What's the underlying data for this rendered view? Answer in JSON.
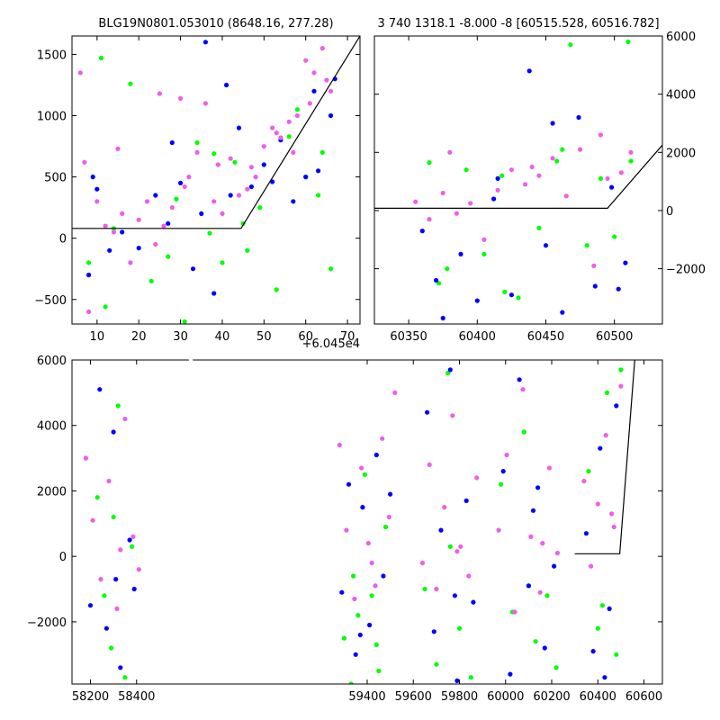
{
  "chart_data": [
    {
      "type": "scatter",
      "title": "BLG19N0801.053010 (8648.16, 277.28)",
      "xlabel": "",
      "ylabel": "",
      "xlim": [
        4,
        73
      ],
      "ylim": [
        -700,
        1650
      ],
      "x_offset_label": "+6.045e4",
      "xticks": [
        10,
        20,
        30,
        40,
        50,
        60,
        70
      ],
      "yticks": [
        -500,
        0,
        500,
        1000,
        1500
      ],
      "ytick_side": "left",
      "colors": {
        "green": "#00ff00",
        "blue": "#0000ff",
        "pink": "#ee5fe6"
      },
      "model_line": {
        "x": [
          4,
          44.5,
          73
        ],
        "y": [
          80,
          80,
          1650
        ]
      },
      "series": [
        {
          "color": "#00ff00",
          "x": [
            8,
            11,
            14,
            18,
            23,
            27,
            31,
            34,
            37,
            40,
            43,
            46,
            49,
            53,
            56,
            60,
            63,
            66,
            12,
            29,
            38,
            45,
            58,
            64
          ],
          "y": [
            -200,
            1470,
            80,
            1260,
            -350,
            -150,
            -680,
            780,
            40,
            -200,
            620,
            -100,
            250,
            -420,
            830,
            500,
            350,
            -250,
            -560,
            320,
            690,
            120,
            1050,
            700
          ]
        },
        {
          "color": "#0000ff",
          "x": [
            8,
            10,
            13,
            16,
            20,
            24,
            27,
            30,
            33,
            36,
            38,
            41,
            44,
            47,
            50,
            54,
            57,
            60,
            63,
            66,
            9,
            28,
            35,
            42,
            52,
            62,
            67
          ],
          "y": [
            -300,
            400,
            -100,
            50,
            -80,
            350,
            120,
            450,
            -250,
            1600,
            -450,
            1250,
            900,
            420,
            600,
            800,
            300,
            500,
            550,
            1000,
            500,
            780,
            200,
            350,
            460,
            1200,
            1300
          ]
        },
        {
          "color": "#ee5fe6",
          "x": [
            6,
            8,
            10,
            12,
            14,
            16,
            18,
            20,
            22,
            24,
            26,
            28,
            30,
            32,
            34,
            36,
            38,
            40,
            42,
            44,
            46,
            48,
            50,
            52,
            54,
            56,
            58,
            60,
            62,
            64,
            66,
            7,
            15,
            25,
            31,
            39,
            47,
            53,
            57,
            61,
            65
          ],
          "y": [
            1350,
            -600,
            300,
            100,
            50,
            200,
            -200,
            150,
            300,
            -50,
            100,
            250,
            1140,
            500,
            700,
            1100,
            300,
            200,
            650,
            350,
            400,
            500,
            750,
            900,
            820,
            950,
            1000,
            1450,
            1350,
            1550,
            1200,
            620,
            730,
            1180,
            420,
            600,
            580,
            860,
            700,
            1100,
            1290
          ]
        }
      ]
    },
    {
      "type": "scatter",
      "title": "3 740 1318.1 -8.000 -8 [60515.528, 60516.782]",
      "xlabel": "",
      "ylabel": "",
      "xlim": [
        60325,
        60535
      ],
      "ylim": [
        -3900,
        6000
      ],
      "xticks": [
        60350,
        60400,
        60450,
        60500
      ],
      "yticks": [
        -2000,
        0,
        2000,
        4000,
        6000
      ],
      "ytick_side": "right",
      "model_line": {
        "x": [
          60325,
          60495,
          60535
        ],
        "y": [
          80,
          80,
          2250
        ]
      },
      "series": [
        {
          "color": "#00ff00",
          "x": [
            60365,
            60378,
            60392,
            60405,
            60418,
            60430,
            60445,
            60458,
            60468,
            60480,
            60490,
            60500,
            60510,
            60372,
            60420,
            60462,
            60512
          ],
          "y": [
            1650,
            -2000,
            1400,
            -1500,
            1200,
            -3000,
            -600,
            1700,
            5700,
            -1200,
            1100,
            -900,
            5800,
            -2500,
            -2800,
            2100,
            1700
          ]
        },
        {
          "color": "#0000ff",
          "x": [
            60360,
            60375,
            60388,
            60400,
            60412,
            60425,
            60438,
            60450,
            60462,
            60474,
            60486,
            60498,
            60508,
            60370,
            60415,
            60455,
            60503
          ],
          "y": [
            -700,
            -3700,
            -1500,
            -3100,
            400,
            -2900,
            4800,
            -1200,
            -3500,
            3200,
            -2600,
            800,
            -1800,
            -2400,
            1100,
            3000,
            -2700
          ]
        },
        {
          "color": "#ee5fe6",
          "x": [
            60355,
            60365,
            60375,
            60385,
            60395,
            60405,
            60415,
            60425,
            60435,
            60445,
            60455,
            60465,
            60475,
            60485,
            60495,
            60505,
            60512,
            60380,
            60440,
            60490
          ],
          "y": [
            300,
            -300,
            600,
            -100,
            250,
            -1000,
            700,
            1400,
            900,
            1200,
            1800,
            500,
            2100,
            -1900,
            1100,
            1300,
            2000,
            2000,
            1500,
            2600
          ]
        }
      ]
    },
    {
      "type": "scatter",
      "title": "",
      "xlabel": "",
      "ylabel": "",
      "xlim": [
        58120,
        60680
      ],
      "ylim": [
        -3900,
        6000
      ],
      "xticks": [
        58200,
        58400,
        59400,
        59600,
        59800,
        60000,
        60200,
        60400,
        60600
      ],
      "yticks": [
        -2000,
        0,
        2000,
        4000,
        6000
      ],
      "ytick_side": "left",
      "model_line": {
        "x": [
          60300,
          60495,
          60560
        ],
        "y": [
          80,
          80,
          6000
        ]
      },
      "series": [
        {
          "color": "#00ff00",
          "x": [
            58230,
            58260,
            58290,
            58320,
            58350,
            58380,
            59300,
            59330,
            59360,
            59390,
            59420,
            59450,
            59480,
            59650,
            59700,
            59750,
            59800,
            59850,
            59980,
            60030,
            60080,
            60130,
            60180,
            60220,
            60360,
            60400,
            60440,
            60480,
            58300,
            59340,
            59440,
            59760,
            60100,
            60420,
            60500
          ],
          "y": [
            1800,
            -1200,
            -2800,
            4600,
            -3700,
            300,
            -2500,
            -3900,
            -1800,
            2500,
            -1200,
            -3500,
            900,
            -1000,
            -3300,
            5600,
            -2200,
            -3700,
            2200,
            -1700,
            3800,
            -2600,
            -1200,
            -3400,
            2600,
            -2200,
            5000,
            -3000,
            1200,
            -600,
            -2700,
            300,
            -900,
            -1500,
            5700
          ]
        },
        {
          "color": "#0000ff",
          "x": [
            58200,
            58240,
            58270,
            58300,
            58330,
            58370,
            58390,
            59290,
            59320,
            59350,
            59380,
            59410,
            59440,
            59470,
            59500,
            59660,
            59690,
            59720,
            59760,
            59790,
            59830,
            59860,
            59990,
            60020,
            60060,
            60100,
            60140,
            60170,
            60210,
            60350,
            60380,
            60410,
            60450,
            60480,
            58310,
            59370,
            59780,
            60120,
            60430
          ],
          "y": [
            -1500,
            5100,
            -2200,
            3800,
            -3400,
            500,
            -1000,
            -1100,
            2200,
            -3000,
            1500,
            -2100,
            3100,
            -600,
            1900,
            4400,
            -2300,
            800,
            5700,
            -3800,
            1700,
            -1400,
            2600,
            -3600,
            5400,
            -900,
            2100,
            -2800,
            -300,
            700,
            -2900,
            3300,
            -1600,
            4600,
            -700,
            -2400,
            -1200,
            1400,
            -3700
          ]
        },
        {
          "color": "#ee5fe6",
          "x": [
            58180,
            58210,
            58245,
            58280,
            58315,
            58350,
            58385,
            58410,
            59280,
            59310,
            59345,
            59375,
            59405,
            59435,
            59465,
            59495,
            59520,
            59640,
            59670,
            59700,
            59735,
            59770,
            59805,
            59840,
            59875,
            59970,
            60005,
            60040,
            60075,
            60110,
            60150,
            60190,
            60225,
            60340,
            60370,
            60400,
            60435,
            60470,
            60500,
            58330,
            59420,
            59790,
            60160,
            60460
          ],
          "y": [
            3000,
            1100,
            -700,
            2300,
            -1600,
            4200,
            600,
            -400,
            3400,
            800,
            -1300,
            2700,
            400,
            -900,
            3600,
            1200,
            5000,
            -200,
            2800,
            -1000,
            1500,
            4300,
            300,
            -600,
            2400,
            800,
            3100,
            -1700,
            5100,
            600,
            -1100,
            2700,
            100,
            2300,
            -300,
            1600,
            3700,
            900,
            5200,
            200,
            -200,
            150,
            400,
            1300
          ]
        }
      ]
    }
  ]
}
